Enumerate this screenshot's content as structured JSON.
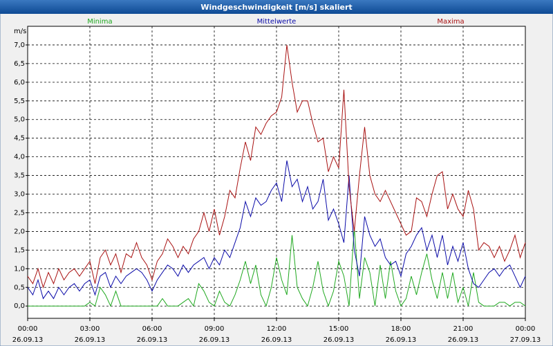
{
  "chart_data": {
    "type": "line",
    "title": "Windgeschwindigkeit [m/s] skaliert",
    "y_unit": "m/s",
    "x": [
      0,
      0.25,
      0.5,
      0.75,
      1,
      1.25,
      1.5,
      1.75,
      2,
      2.25,
      2.5,
      2.75,
      3,
      3.25,
      3.5,
      3.75,
      4,
      4.25,
      4.5,
      4.75,
      5,
      5.25,
      5.5,
      5.75,
      6,
      6.25,
      6.5,
      6.75,
      7,
      7.25,
      7.5,
      7.75,
      8,
      8.25,
      8.5,
      8.75,
      9,
      9.25,
      9.5,
      9.75,
      10,
      10.25,
      10.5,
      10.75,
      11,
      11.25,
      11.5,
      11.75,
      12,
      12.25,
      12.5,
      12.75,
      13,
      13.25,
      13.5,
      13.75,
      14,
      14.25,
      14.5,
      14.75,
      15,
      15.25,
      15.5,
      15.75,
      16,
      16.25,
      16.5,
      16.75,
      17,
      17.25,
      17.5,
      17.75,
      18,
      18.25,
      18.5,
      18.75,
      19,
      19.25,
      19.5,
      19.75,
      20,
      20.25,
      20.5,
      20.75,
      21,
      21.25,
      21.5,
      21.75,
      22,
      22.25,
      22.5,
      22.75,
      23,
      23.25,
      23.5,
      23.75,
      24
    ],
    "series": [
      {
        "name": "Minima",
        "color": "#1fa81f",
        "values": [
          0,
          0,
          0,
          0,
          0,
          0,
          0,
          0,
          0,
          0,
          0,
          0,
          0.1,
          0,
          0.5,
          0.3,
          0,
          0.4,
          0,
          0,
          0,
          0,
          0,
          0,
          0,
          0,
          0.2,
          0,
          0,
          0,
          0.1,
          0.2,
          0,
          0.6,
          0.4,
          0.1,
          0,
          0.4,
          0.1,
          0,
          0.3,
          0.7,
          1.2,
          0.6,
          1.1,
          0.3,
          0,
          0.5,
          1.3,
          0.7,
          0.3,
          1.9,
          0.5,
          0.2,
          0,
          0.5,
          1.2,
          0.4,
          0,
          0.4,
          1.2,
          0.8,
          0,
          2.1,
          0.2,
          1.3,
          0.9,
          0,
          1.1,
          0.2,
          1.2,
          0.4,
          0,
          0.2,
          0.8,
          0.3,
          0.9,
          1.4,
          0.7,
          0.2,
          0.9,
          0.2,
          0.9,
          0.1,
          0.5,
          0,
          0.9,
          0.1,
          0,
          0,
          0,
          0.1,
          0.1,
          0,
          0.1,
          0.1,
          0
        ]
      },
      {
        "name": "Mittelwerte",
        "color": "#0a0aa8",
        "values": [
          0.5,
          0.3,
          0.7,
          0.2,
          0.4,
          0.2,
          0.5,
          0.3,
          0.5,
          0.6,
          0.4,
          0.6,
          0.7,
          0.3,
          0.8,
          0.9,
          0.5,
          0.8,
          0.6,
          0.8,
          0.9,
          1.0,
          0.9,
          0.7,
          0.4,
          0.7,
          0.9,
          1.1,
          1.0,
          0.8,
          1.1,
          0.9,
          1.1,
          1.2,
          1.3,
          1.0,
          1.3,
          1.1,
          1.5,
          1.3,
          1.7,
          2.1,
          2.8,
          2.4,
          2.9,
          2.7,
          2.8,
          3.1,
          3.3,
          2.8,
          3.9,
          3.2,
          3.4,
          2.8,
          3.2,
          2.6,
          2.8,
          3.4,
          2.3,
          2.6,
          2.2,
          1.7,
          3.5,
          1.5,
          0.8,
          2.4,
          1.9,
          1.6,
          1.8,
          1.3,
          1.1,
          1.2,
          0.8,
          1.4,
          1.6,
          1.9,
          2.1,
          1.5,
          1.9,
          1.3,
          1.9,
          1.1,
          1.6,
          1.2,
          1.7,
          1.0,
          0.6,
          0.5,
          0.7,
          0.9,
          1.0,
          0.8,
          1.0,
          1.1,
          0.8,
          0.5,
          0.8
        ]
      },
      {
        "name": "Maxima",
        "color": "#a81010",
        "values": [
          0.8,
          0.6,
          1.0,
          0.5,
          0.9,
          0.6,
          1.0,
          0.7,
          0.9,
          1.0,
          0.8,
          1.0,
          1.2,
          0.6,
          1.3,
          1.5,
          1.1,
          1.4,
          0.9,
          1.4,
          1.3,
          1.7,
          1.3,
          1.1,
          0.7,
          1.2,
          1.4,
          1.8,
          1.6,
          1.3,
          1.6,
          1.4,
          1.8,
          2.0,
          2.5,
          2.0,
          2.6,
          1.9,
          2.4,
          3.1,
          2.9,
          3.7,
          4.4,
          3.9,
          4.8,
          4.6,
          4.9,
          5.1,
          5.2,
          5.6,
          7.0,
          6.0,
          5.2,
          5.5,
          5.5,
          4.9,
          4.4,
          4.5,
          3.6,
          4.0,
          3.7,
          5.8,
          3.2,
          2.0,
          3.5,
          4.8,
          3.5,
          3.0,
          2.8,
          3.1,
          2.8,
          2.5,
          2.2,
          1.9,
          2.0,
          2.9,
          2.8,
          2.4,
          3.0,
          3.5,
          3.6,
          2.6,
          3.0,
          2.6,
          2.4,
          3.1,
          2.6,
          1.5,
          1.7,
          1.6,
          1.3,
          1.6,
          1.2,
          1.5,
          1.9,
          1.3,
          1.7
        ]
      }
    ],
    "xlim": [
      0,
      24
    ],
    "xticks": [
      {
        "value": 0,
        "label": "00:00"
      },
      {
        "value": 3,
        "label": "03:00"
      },
      {
        "value": 6,
        "label": "06:00"
      },
      {
        "value": 9,
        "label": "09:00"
      },
      {
        "value": 12,
        "label": "12:00"
      },
      {
        "value": 15,
        "label": "15:00"
      },
      {
        "value": 18,
        "label": "18:00"
      },
      {
        "value": 21,
        "label": "21:00"
      },
      {
        "value": 24,
        "label": "00:00"
      }
    ],
    "xtick_dates": [
      "26.09.13",
      "26.09.13",
      "26.09.13",
      "26.09.13",
      "26.09.13",
      "26.09.13",
      "26.09.13",
      "26.09.13",
      "27.09.13"
    ],
    "ylim": [
      -0.33,
      7.5
    ],
    "yticks": [
      {
        "value": 0,
        "label": "0,0"
      },
      {
        "value": 0.5,
        "label": "0,5"
      },
      {
        "value": 1,
        "label": "1,0"
      },
      {
        "value": 1.5,
        "label": "1,5"
      },
      {
        "value": 2,
        "label": "2,0"
      },
      {
        "value": 2.5,
        "label": "2,5"
      },
      {
        "value": 3,
        "label": "3,0"
      },
      {
        "value": 3.5,
        "label": "3,5"
      },
      {
        "value": 4,
        "label": "4,0"
      },
      {
        "value": 4.5,
        "label": "4,5"
      },
      {
        "value": 5,
        "label": "5,0"
      },
      {
        "value": 5.5,
        "label": "5,5"
      },
      {
        "value": 6,
        "label": "6,0"
      },
      {
        "value": 6.5,
        "label": "6,5"
      },
      {
        "value": 7,
        "label": "7,0"
      }
    ],
    "grid": true
  }
}
